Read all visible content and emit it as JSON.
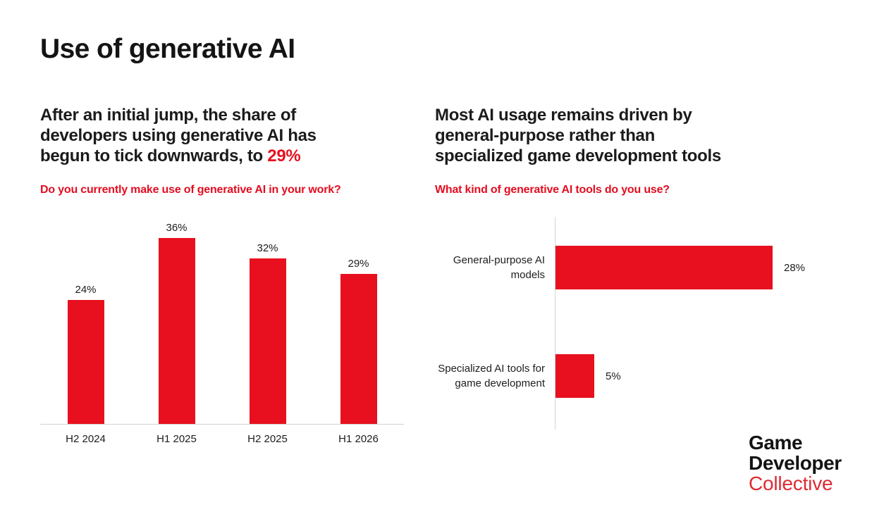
{
  "page": {
    "title": "Use of generative AI"
  },
  "left": {
    "heading_lines": [
      "After an initial jump, the share of",
      "developers using generative AI has",
      "begun to tick downwards, to"
    ],
    "heading_highlight": "29%",
    "question": "Do you currently make use of generative AI in your work?"
  },
  "right": {
    "heading_lines": [
      "Most AI usage remains driven by",
      "general-purpose rather than",
      "specialized game development tools"
    ],
    "question": "What kind of generative AI tools do you use?"
  },
  "chart_data": [
    {
      "type": "bar",
      "orientation": "vertical",
      "title": "Do you currently make use of generative AI in your work?",
      "categories": [
        "H2 2024",
        "H1 2025",
        "H2 2025",
        "H1 2026"
      ],
      "values": [
        24,
        36,
        32,
        29
      ],
      "value_labels": [
        "24%",
        "36%",
        "32%",
        "29%"
      ],
      "ylabel": "",
      "xlabel": "",
      "ylim": [
        0,
        40
      ],
      "grid": false,
      "legend": false,
      "bar_color": "#e8101e"
    },
    {
      "type": "bar",
      "orientation": "horizontal",
      "title": "What kind of generative AI tools do you use?",
      "categories": [
        "General-purpose AI models",
        "Specialized AI tools for game development"
      ],
      "category_lines": [
        [
          "General-purpose AI",
          "models"
        ],
        [
          "Specialized AI tools for",
          "game development"
        ]
      ],
      "values": [
        28,
        5
      ],
      "value_labels": [
        "28%",
        "5%"
      ],
      "ylabel": "",
      "xlabel": "",
      "xlim": [
        0,
        30
      ],
      "grid": false,
      "legend": false,
      "bar_color": "#e8101e"
    }
  ],
  "logo": {
    "line1": "Game",
    "line2": "Developer",
    "line3": "Collective"
  },
  "colors": {
    "accent_red": "#e8101e",
    "question_red": "#e30d20",
    "text_dark": "#1b1b1b",
    "axis_gray": "#d4d4d4"
  }
}
